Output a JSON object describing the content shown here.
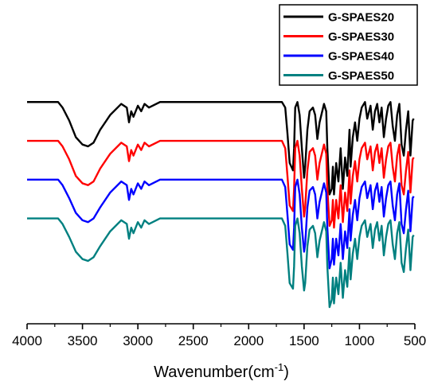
{
  "chart_data": {
    "type": "line",
    "title": "",
    "xlabel": "Wavenumber(cm",
    "xlabel_superscript": "-1",
    "xlabel_suffix": ")",
    "ylabel": "",
    "xlim": [
      4000,
      500
    ],
    "x_reversed": true,
    "x_ticks": [
      "4000",
      "3500",
      "3000",
      "2500",
      "2000",
      "1500",
      "1000",
      "500"
    ],
    "grid": false,
    "y_axis_visible": false,
    "legend_position": "top-right",
    "series": [
      {
        "name": "G-SPAES20",
        "color": "#000000",
        "x": [
          4000,
          3720,
          3680,
          3620,
          3560,
          3500,
          3450,
          3400,
          3340,
          3250,
          3150,
          3100,
          3080,
          3060,
          3040,
          3000,
          2970,
          2940,
          2900,
          2800,
          2600,
          2400,
          2200,
          2000,
          1800,
          1700,
          1670,
          1650,
          1630,
          1600,
          1590,
          1580,
          1560,
          1540,
          1520,
          1500,
          1490,
          1470,
          1450,
          1420,
          1400,
          1380,
          1360,
          1320,
          1300,
          1290,
          1270,
          1250,
          1240,
          1230,
          1210,
          1190,
          1170,
          1150,
          1130,
          1110,
          1090,
          1080,
          1060,
          1040,
          1020,
          1000,
          980,
          950,
          930,
          900,
          880,
          860,
          840,
          820,
          800,
          780,
          760,
          740,
          720,
          700,
          680,
          660,
          640,
          620,
          600,
          580,
          560,
          540,
          520,
          510
        ],
        "values": [
          0.95,
          0.95,
          0.92,
          0.85,
          0.76,
          0.72,
          0.71,
          0.73,
          0.8,
          0.88,
          0.94,
          0.92,
          0.84,
          0.9,
          0.87,
          0.93,
          0.9,
          0.94,
          0.92,
          0.95,
          0.95,
          0.95,
          0.95,
          0.95,
          0.95,
          0.95,
          0.92,
          0.78,
          0.62,
          0.58,
          0.7,
          0.92,
          0.95,
          0.88,
          0.7,
          0.54,
          0.6,
          0.8,
          0.9,
          0.92,
          0.88,
          0.75,
          0.84,
          0.94,
          0.9,
          0.7,
          0.45,
          0.48,
          0.6,
          0.45,
          0.62,
          0.52,
          0.7,
          0.48,
          0.65,
          0.55,
          0.8,
          0.6,
          0.76,
          0.84,
          0.74,
          0.86,
          0.92,
          0.95,
          0.86,
          0.93,
          0.8,
          0.9,
          0.94,
          0.84,
          0.92,
          0.76,
          0.86,
          0.93,
          0.95,
          0.82,
          0.74,
          0.88,
          0.94,
          0.72,
          0.66,
          0.8,
          0.9,
          0.66,
          0.85,
          0.86
        ]
      },
      {
        "name": "G-SPAES30",
        "color": "#ff0000",
        "x": [
          4000,
          3720,
          3680,
          3620,
          3560,
          3500,
          3450,
          3400,
          3340,
          3250,
          3150,
          3100,
          3080,
          3060,
          3040,
          3000,
          2970,
          2940,
          2900,
          2800,
          2600,
          2400,
          2200,
          2000,
          1800,
          1700,
          1670,
          1650,
          1630,
          1600,
          1590,
          1580,
          1560,
          1540,
          1520,
          1500,
          1490,
          1470,
          1450,
          1420,
          1400,
          1380,
          1360,
          1320,
          1300,
          1290,
          1270,
          1250,
          1240,
          1230,
          1210,
          1190,
          1170,
          1150,
          1130,
          1110,
          1090,
          1080,
          1060,
          1040,
          1020,
          1000,
          980,
          950,
          930,
          900,
          880,
          860,
          840,
          820,
          800,
          780,
          760,
          740,
          720,
          700,
          680,
          660,
          640,
          620,
          600,
          580,
          560,
          540,
          520,
          510
        ],
        "values": [
          0.74,
          0.74,
          0.71,
          0.64,
          0.55,
          0.51,
          0.5,
          0.52,
          0.59,
          0.67,
          0.73,
          0.71,
          0.63,
          0.69,
          0.66,
          0.72,
          0.69,
          0.73,
          0.71,
          0.74,
          0.74,
          0.74,
          0.74,
          0.74,
          0.74,
          0.74,
          0.7,
          0.55,
          0.39,
          0.36,
          0.48,
          0.7,
          0.74,
          0.66,
          0.48,
          0.33,
          0.38,
          0.58,
          0.68,
          0.7,
          0.66,
          0.53,
          0.62,
          0.72,
          0.67,
          0.48,
          0.28,
          0.31,
          0.42,
          0.27,
          0.42,
          0.32,
          0.5,
          0.3,
          0.46,
          0.36,
          0.58,
          0.4,
          0.55,
          0.63,
          0.52,
          0.64,
          0.7,
          0.73,
          0.64,
          0.71,
          0.58,
          0.68,
          0.72,
          0.62,
          0.7,
          0.54,
          0.64,
          0.71,
          0.73,
          0.6,
          0.52,
          0.66,
          0.72,
          0.5,
          0.45,
          0.58,
          0.68,
          0.46,
          0.64,
          0.65
        ]
      },
      {
        "name": "G-SPAES40",
        "color": "#0000ff",
        "x": [
          4000,
          3720,
          3680,
          3620,
          3560,
          3500,
          3450,
          3400,
          3340,
          3250,
          3150,
          3100,
          3080,
          3060,
          3040,
          3000,
          2970,
          2940,
          2900,
          2800,
          2600,
          2400,
          2200,
          2000,
          1800,
          1700,
          1670,
          1650,
          1630,
          1600,
          1590,
          1580,
          1560,
          1540,
          1520,
          1500,
          1490,
          1470,
          1450,
          1420,
          1400,
          1380,
          1360,
          1320,
          1300,
          1290,
          1270,
          1250,
          1240,
          1230,
          1210,
          1190,
          1170,
          1150,
          1130,
          1110,
          1090,
          1080,
          1060,
          1040,
          1020,
          1000,
          980,
          950,
          930,
          900,
          880,
          860,
          840,
          820,
          800,
          780,
          760,
          740,
          720,
          700,
          680,
          660,
          640,
          620,
          600,
          580,
          560,
          540,
          520,
          510
        ],
        "values": [
          0.53,
          0.53,
          0.5,
          0.43,
          0.35,
          0.31,
          0.3,
          0.32,
          0.38,
          0.46,
          0.52,
          0.5,
          0.42,
          0.48,
          0.45,
          0.51,
          0.48,
          0.52,
          0.5,
          0.53,
          0.53,
          0.53,
          0.53,
          0.53,
          0.53,
          0.53,
          0.49,
          0.34,
          0.18,
          0.15,
          0.27,
          0.49,
          0.53,
          0.45,
          0.27,
          0.14,
          0.18,
          0.38,
          0.47,
          0.49,
          0.45,
          0.32,
          0.41,
          0.51,
          0.46,
          0.27,
          0.05,
          0.1,
          0.21,
          0.07,
          0.21,
          0.12,
          0.29,
          0.1,
          0.25,
          0.16,
          0.37,
          0.2,
          0.34,
          0.42,
          0.31,
          0.43,
          0.49,
          0.52,
          0.43,
          0.5,
          0.37,
          0.47,
          0.51,
          0.41,
          0.49,
          0.33,
          0.43,
          0.5,
          0.52,
          0.39,
          0.31,
          0.45,
          0.51,
          0.29,
          0.24,
          0.37,
          0.47,
          0.25,
          0.43,
          0.44
        ]
      },
      {
        "name": "G-SPAES50",
        "color": "#008080",
        "x": [
          4000,
          3720,
          3680,
          3620,
          3560,
          3500,
          3450,
          3400,
          3340,
          3250,
          3150,
          3100,
          3080,
          3060,
          3040,
          3000,
          2970,
          2940,
          2900,
          2800,
          2600,
          2400,
          2200,
          2000,
          1800,
          1700,
          1670,
          1650,
          1630,
          1600,
          1590,
          1580,
          1560,
          1540,
          1520,
          1500,
          1490,
          1470,
          1450,
          1420,
          1400,
          1380,
          1360,
          1320,
          1300,
          1290,
          1270,
          1250,
          1240,
          1230,
          1210,
          1190,
          1170,
          1150,
          1130,
          1110,
          1090,
          1080,
          1060,
          1040,
          1020,
          1000,
          980,
          950,
          930,
          900,
          880,
          860,
          840,
          820,
          800,
          780,
          760,
          740,
          720,
          700,
          680,
          660,
          640,
          620,
          600,
          580,
          560,
          540,
          520,
          510
        ],
        "values": [
          0.32,
          0.32,
          0.29,
          0.22,
          0.14,
          0.1,
          0.09,
          0.11,
          0.17,
          0.25,
          0.31,
          0.29,
          0.21,
          0.27,
          0.24,
          0.3,
          0.27,
          0.31,
          0.29,
          0.32,
          0.32,
          0.32,
          0.32,
          0.32,
          0.32,
          0.32,
          0.28,
          0.13,
          -0.03,
          -0.06,
          0.06,
          0.28,
          0.32,
          0.24,
          0.06,
          -0.07,
          -0.03,
          0.17,
          0.26,
          0.28,
          0.24,
          0.11,
          0.2,
          0.3,
          0.25,
          0.06,
          -0.16,
          -0.12,
          0.0,
          -0.14,
          0.0,
          -0.09,
          0.08,
          -0.11,
          0.04,
          -0.05,
          0.16,
          -0.01,
          0.13,
          0.21,
          0.1,
          0.22,
          0.28,
          0.31,
          0.22,
          0.29,
          0.16,
          0.26,
          0.3,
          0.2,
          0.28,
          0.12,
          0.22,
          0.29,
          0.31,
          0.18,
          0.1,
          0.24,
          0.3,
          0.08,
          0.03,
          0.16,
          0.26,
          0.04,
          0.22,
          0.23
        ]
      }
    ]
  }
}
